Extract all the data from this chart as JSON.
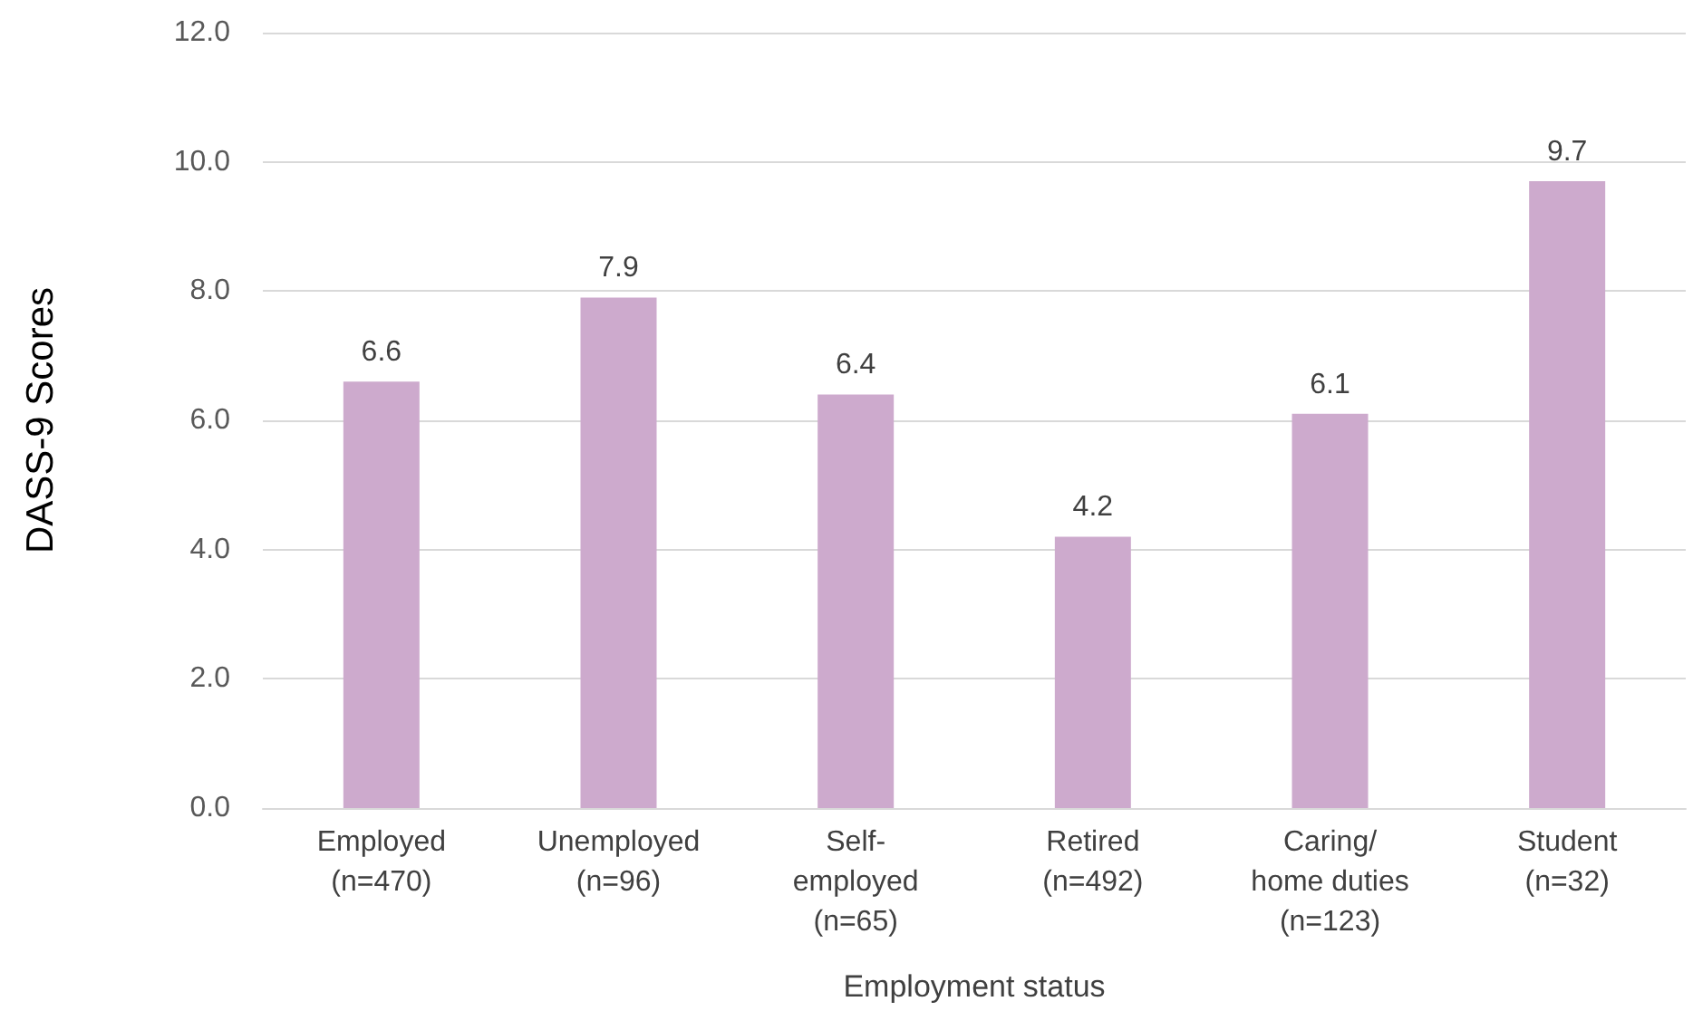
{
  "chart_data": {
    "type": "bar",
    "xlabel": "Employment status",
    "ylabel": "DASS-9 Scores",
    "categories": [
      "Employed\n(n=470)",
      "Unemployed\n(n=96)",
      "Self-\nemployed\n(n=65)",
      "Retired\n(n=492)",
      "Caring/\nhome duties\n(n=123)",
      "Student\n(n=32)"
    ],
    "values": [
      6.6,
      7.9,
      6.4,
      4.2,
      6.1,
      9.7
    ],
    "color": "#cdaacd",
    "data_labels": true,
    "ylim": [
      0,
      12
    ],
    "yticks": [
      {
        "value": 0,
        "label": "0.0"
      },
      {
        "value": 2,
        "label": "2.0"
      },
      {
        "value": 4,
        "label": "4.0"
      },
      {
        "value": 6,
        "label": "6.0"
      },
      {
        "value": 8,
        "label": "8.0"
      },
      {
        "value": 10,
        "label": "10.0"
      },
      {
        "value": 12,
        "label": "12.0"
      }
    ],
    "grid": "y"
  }
}
